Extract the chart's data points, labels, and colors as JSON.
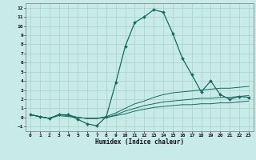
{
  "xlabel": "Humidex (Indice chaleur)",
  "background_color": "#c8ebe8",
  "grid_color": "#a8d8d0",
  "line_color": "#1a6860",
  "xlim": [
    -0.5,
    23.5
  ],
  "ylim": [
    -1.5,
    12.5
  ],
  "xticks": [
    0,
    1,
    2,
    3,
    4,
    5,
    6,
    7,
    8,
    9,
    10,
    11,
    12,
    13,
    14,
    15,
    16,
    17,
    18,
    19,
    20,
    21,
    22,
    23
  ],
  "yticks": [
    -1,
    0,
    1,
    2,
    3,
    4,
    5,
    6,
    7,
    8,
    9,
    10,
    11,
    12
  ],
  "main_line": {
    "x": [
      0,
      1,
      2,
      3,
      4,
      5,
      6,
      7,
      8,
      9,
      10,
      11,
      12,
      13,
      14,
      15,
      16,
      17,
      18,
      19,
      20,
      21,
      22,
      23
    ],
    "y": [
      0.3,
      0.1,
      -0.1,
      0.3,
      0.3,
      -0.2,
      -0.7,
      -0.9,
      0.1,
      3.8,
      7.8,
      10.4,
      11.0,
      11.8,
      11.5,
      9.2,
      6.5,
      4.7,
      2.8,
      4.0,
      2.5,
      2.0,
      2.3,
      2.2
    ]
  },
  "secondary_lines": [
    {
      "x": [
        0,
        1,
        2,
        3,
        4,
        5,
        6,
        7,
        8,
        9,
        10,
        11,
        12,
        13,
        14,
        15,
        16,
        17,
        18,
        19,
        20,
        21,
        22,
        23
      ],
      "y": [
        0.3,
        0.1,
        -0.1,
        0.3,
        0.3,
        0.0,
        -0.1,
        -0.1,
        0.1,
        0.5,
        1.0,
        1.5,
        1.8,
        2.2,
        2.5,
        2.7,
        2.8,
        2.9,
        3.0,
        3.1,
        3.2,
        3.2,
        3.3,
        3.4
      ]
    },
    {
      "x": [
        0,
        1,
        2,
        3,
        4,
        5,
        6,
        7,
        8,
        9,
        10,
        11,
        12,
        13,
        14,
        15,
        16,
        17,
        18,
        19,
        20,
        21,
        22,
        23
      ],
      "y": [
        0.3,
        0.1,
        -0.1,
        0.3,
        0.2,
        0.0,
        -0.1,
        -0.1,
        0.0,
        0.3,
        0.7,
        1.0,
        1.3,
        1.5,
        1.7,
        1.8,
        1.9,
        2.0,
        2.1,
        2.1,
        2.2,
        2.2,
        2.3,
        2.4
      ]
    },
    {
      "x": [
        0,
        1,
        2,
        3,
        4,
        5,
        6,
        7,
        8,
        9,
        10,
        11,
        12,
        13,
        14,
        15,
        16,
        17,
        18,
        19,
        20,
        21,
        22,
        23
      ],
      "y": [
        0.3,
        0.1,
        -0.1,
        0.2,
        0.1,
        0.0,
        -0.1,
        -0.1,
        0.0,
        0.2,
        0.4,
        0.7,
        0.9,
        1.1,
        1.2,
        1.3,
        1.4,
        1.4,
        1.5,
        1.5,
        1.6,
        1.6,
        1.7,
        1.8
      ]
    }
  ]
}
